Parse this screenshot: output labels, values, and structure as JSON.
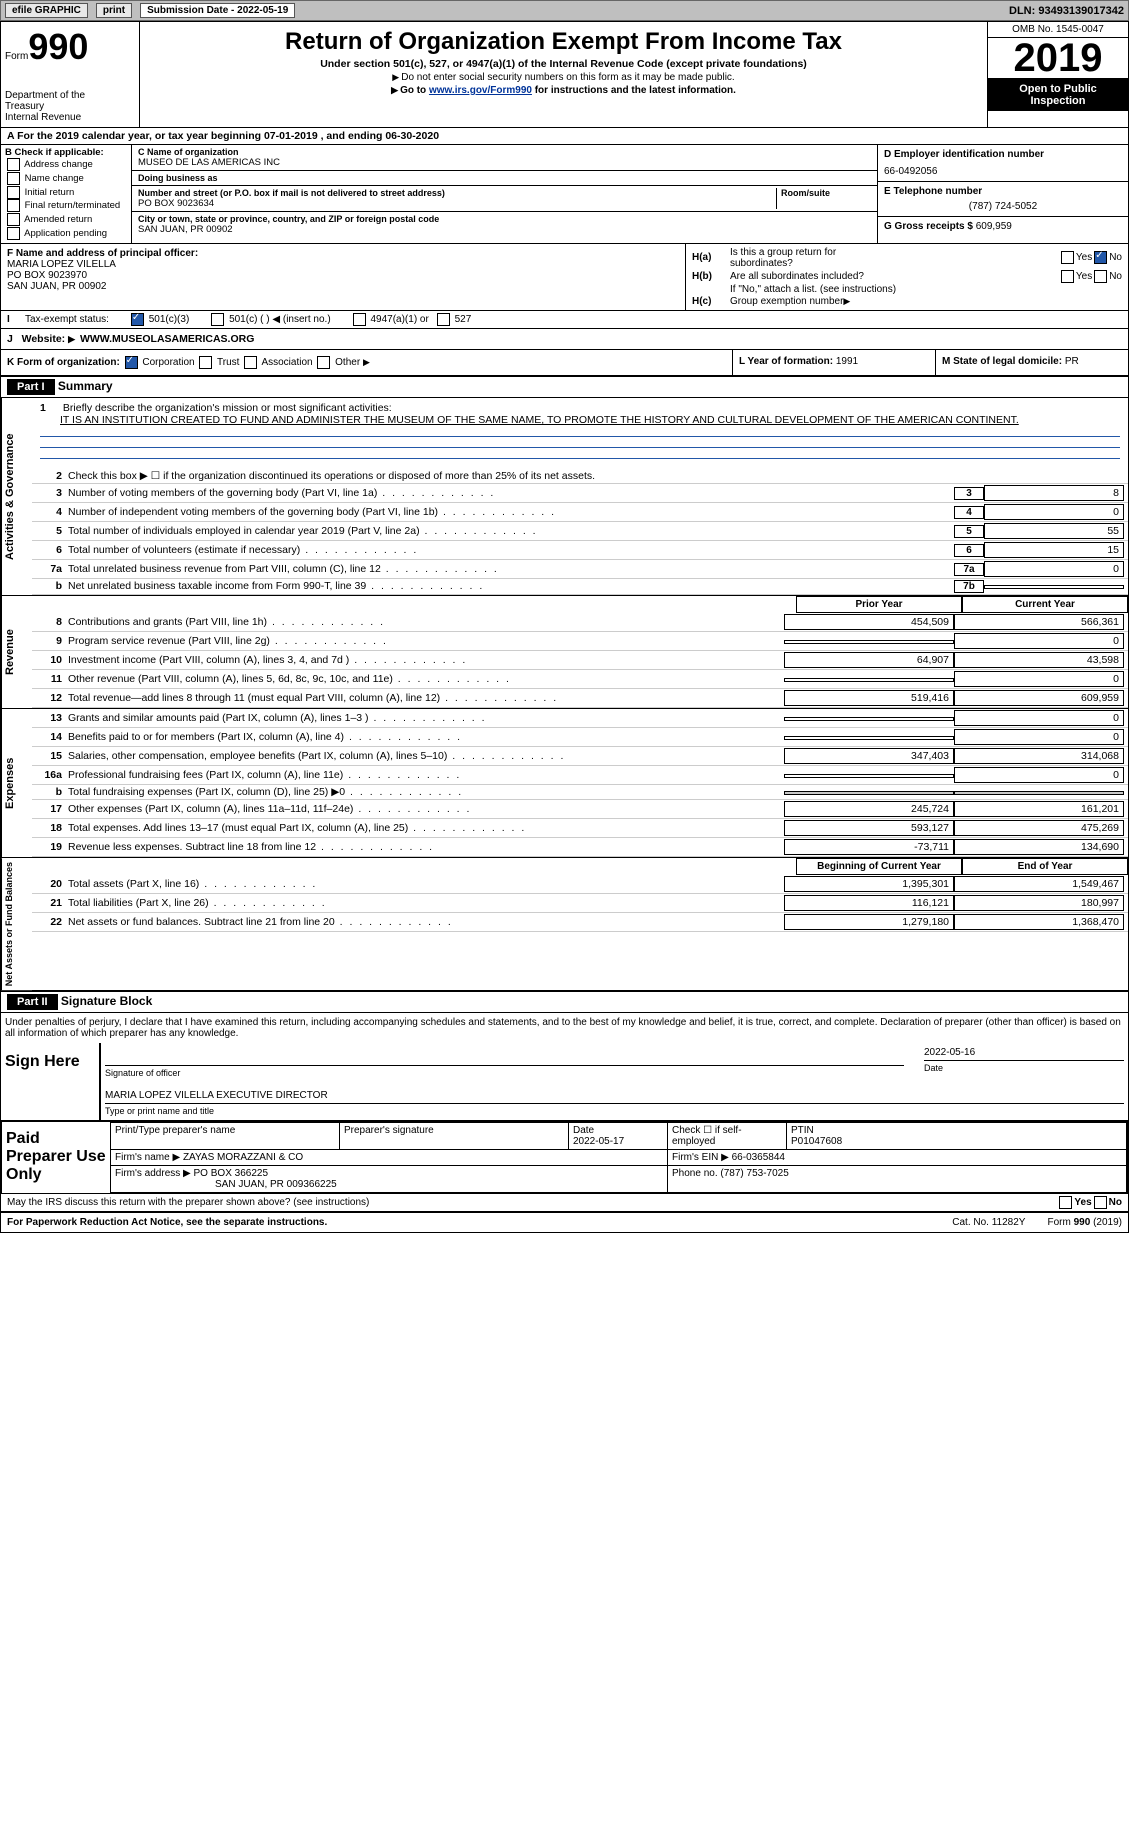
{
  "toolbar": {
    "efile_label": "efile GRAPHIC",
    "print_label": "print",
    "submission_label": "Submission Date - 2022-05-19",
    "dln": "DLN: 93493139017342"
  },
  "header": {
    "form_word": "Form",
    "form_number": "990",
    "dept1": "Department of the",
    "dept2": "Treasury",
    "dept3": "Internal Revenue",
    "title": "Return of Organization Exempt From Income Tax",
    "subtitle": "Under section 501(c), 527, or 4947(a)(1) of the Internal Revenue Code (except private foundations)",
    "note1": "Do not enter social security numbers on this form as it may be made public.",
    "note2_pre": "Go to ",
    "note2_link": "www.irs.gov/Form990",
    "note2_post": " for instructions and the latest information.",
    "omb": "OMB No. 1545-0047",
    "year": "2019",
    "open1": "Open to Public",
    "open2": "Inspection"
  },
  "a_row": "A For the 2019 calendar year, or tax year beginning 07-01-2019    , and ending 06-30-2020",
  "boxB": {
    "header": "B Check if applicable:",
    "opts": [
      "Address change",
      "Name change",
      "Initial return",
      "Final return/terminated",
      "Amended return",
      "Application pending"
    ]
  },
  "boxC": {
    "name_label": "C Name of organization",
    "name": "MUSEO DE LAS AMERICAS INC",
    "dba_label": "Doing business as",
    "dba": "",
    "addr_label": "Number and street (or P.O. box if mail is not delivered to street address)",
    "room_label": "Room/suite",
    "addr": "PO BOX 9023634",
    "city_label": "City or town, state or province, country, and ZIP or foreign postal code",
    "city": "SAN JUAN, PR   00902"
  },
  "boxD": {
    "label": "D Employer identification number",
    "value": "66-0492056"
  },
  "boxE": {
    "label": "E Telephone number",
    "value": "(787) 724-5052"
  },
  "boxG": {
    "label": "G Gross receipts $",
    "value": "609,959"
  },
  "boxF": {
    "label": "F  Name and address of principal officer:",
    "name": "MARIA LOPEZ VILELLA",
    "addr1": "PO BOX 9023970",
    "addr2": "SAN JUAN, PR   00902"
  },
  "boxH": {
    "a_label": "H(a)",
    "a_text": "Is this a group return for",
    "a_text2": "subordinates?",
    "b_label": "H(b)",
    "b_text": "Are all subordinates included?",
    "b_note": "If \"No,\" attach a list. (see instructions)",
    "c_label": "H(c)",
    "c_text": "Group exemption number",
    "yes": "Yes",
    "no": "No"
  },
  "statusI": {
    "label": "Tax-exempt status:",
    "o1": "501(c)(3)",
    "o2": "501(c) (  )",
    "o2_note": "(insert no.)",
    "o3": "4947(a)(1) or",
    "o4": "527"
  },
  "rowJ": {
    "label": "Website:",
    "value": "WWW.MUSEOLASAMERICAS.ORG"
  },
  "rowK": {
    "label": "K Form of organization:",
    "o1": "Corporation",
    "o2": "Trust",
    "o3": "Association",
    "o4": "Other"
  },
  "rowL": {
    "label": "L Year of formation:",
    "value": "1991"
  },
  "rowM": {
    "label": "M State of legal domicile:",
    "value": "PR"
  },
  "part1": {
    "header": "Part I",
    "title": "Summary",
    "line1_label": "1",
    "line1_text": "Briefly describe the organization's mission or most significant activities:",
    "mission": "IT IS AN INSTITUTION CREATED TO FUND AND ADMINISTER THE MUSEUM OF THE SAME NAME, TO PROMOTE THE HISTORY AND CULTURAL DEVELOPMENT OF THE AMERICAN CONTINENT.",
    "line2": "Check this box ▶ ☐  if the organization discontinued its operations or disposed of more than 25% of its net assets.",
    "side_gov": "Activities & Governance",
    "side_rev": "Revenue",
    "side_exp": "Expenses",
    "side_net": "Net Assets or Fund Balances",
    "col_prior": "Prior Year",
    "col_current": "Current Year",
    "col_bocy": "Beginning of Current Year",
    "col_eoy": "End of Year",
    "gov_lines": [
      {
        "n": "3",
        "d": "Number of voting members of the governing body (Part VI, line 1a)",
        "box": "3",
        "v": "8"
      },
      {
        "n": "4",
        "d": "Number of independent voting members of the governing body (Part VI, line 1b)",
        "box": "4",
        "v": "0"
      },
      {
        "n": "5",
        "d": "Total number of individuals employed in calendar year 2019 (Part V, line 2a)",
        "box": "5",
        "v": "55"
      },
      {
        "n": "6",
        "d": "Total number of volunteers (estimate if necessary)",
        "box": "6",
        "v": "15"
      },
      {
        "n": "7a",
        "d": "Total unrelated business revenue from Part VIII, column (C), line 12",
        "box": "7a",
        "v": "0"
      },
      {
        "n": "b",
        "d": "Net unrelated business taxable income from Form 990-T, line 39",
        "box": "7b",
        "v": ""
      }
    ],
    "rev_lines": [
      {
        "n": "8",
        "d": "Contributions and grants (Part VIII, line 1h)",
        "p": "454,509",
        "c": "566,361"
      },
      {
        "n": "9",
        "d": "Program service revenue (Part VIII, line 2g)",
        "p": "",
        "c": "0"
      },
      {
        "n": "10",
        "d": "Investment income (Part VIII, column (A), lines 3, 4, and 7d )",
        "p": "64,907",
        "c": "43,598"
      },
      {
        "n": "11",
        "d": "Other revenue (Part VIII, column (A), lines 5, 6d, 8c, 9c, 10c, and 11e)",
        "p": "",
        "c": "0"
      },
      {
        "n": "12",
        "d": "Total revenue—add lines 8 through 11 (must equal Part VIII, column (A), line 12)",
        "p": "519,416",
        "c": "609,959"
      }
    ],
    "exp_lines": [
      {
        "n": "13",
        "d": "Grants and similar amounts paid (Part IX, column (A), lines 1–3 )",
        "p": "",
        "c": "0"
      },
      {
        "n": "14",
        "d": "Benefits paid to or for members (Part IX, column (A), line 4)",
        "p": "",
        "c": "0"
      },
      {
        "n": "15",
        "d": "Salaries, other compensation, employee benefits (Part IX, column (A), lines 5–10)",
        "p": "347,403",
        "c": "314,068"
      },
      {
        "n": "16a",
        "d": "Professional fundraising fees (Part IX, column (A), line 11e)",
        "p": "",
        "c": "0"
      },
      {
        "n": "b",
        "d": "Total fundraising expenses (Part IX, column (D), line 25) ▶0",
        "p": "SHADE",
        "c": "SHADE"
      },
      {
        "n": "17",
        "d": "Other expenses (Part IX, column (A), lines 11a–11d, 11f–24e)",
        "p": "245,724",
        "c": "161,201"
      },
      {
        "n": "18",
        "d": "Total expenses. Add lines 13–17 (must equal Part IX, column (A), line 25)",
        "p": "593,127",
        "c": "475,269"
      },
      {
        "n": "19",
        "d": "Revenue less expenses. Subtract line 18 from line 12",
        "p": "-73,711",
        "c": "134,690"
      }
    ],
    "net_lines": [
      {
        "n": "20",
        "d": "Total assets (Part X, line 16)",
        "p": "1,395,301",
        "c": "1,549,467"
      },
      {
        "n": "21",
        "d": "Total liabilities (Part X, line 26)",
        "p": "116,121",
        "c": "180,997"
      },
      {
        "n": "22",
        "d": "Net assets or fund balances. Subtract line 21 from line 20",
        "p": "1,279,180",
        "c": "1,368,470"
      }
    ]
  },
  "part2": {
    "header": "Part II",
    "title": "Signature Block",
    "declaration": "Under penalties of perjury, I declare that I have examined this return, including accompanying schedules and statements, and to the best of my knowledge and belief, it is true, correct, and complete. Declaration of preparer (other than officer) is based on all information of which preparer has any knowledge.",
    "sign_here": "Sign Here",
    "sig_officer": "Signature of officer",
    "sig_date": "Date",
    "sig_date_val": "2022-05-16",
    "officer_name": "MARIA LOPEZ VILELLA  EXECUTIVE DIRECTOR",
    "type_name": "Type or print name and title",
    "paid_label": "Paid Preparer Use Only",
    "prep_name_label": "Print/Type preparer's name",
    "prep_sig_label": "Preparer's signature",
    "prep_date_label": "Date",
    "prep_date": "2022-05-17",
    "self_emp": "Check ☐ if self-employed",
    "ptin_label": "PTIN",
    "ptin": "P01047608",
    "firm_name_label": "Firm's name    ▶",
    "firm_name": "ZAYAS MORAZZANI & CO",
    "firm_ein_label": "Firm's EIN ▶",
    "firm_ein": "66-0365844",
    "firm_addr_label": "Firm's address ▶",
    "firm_addr1": "PO BOX 366225",
    "firm_addr2": "SAN JUAN, PR   009366225",
    "phone_label": "Phone no.",
    "phone": "(787) 753-7025",
    "discuss": "May the IRS discuss this return with the preparer shown above? (see instructions)",
    "yes": "Yes",
    "no": "No"
  },
  "footer": {
    "pra": "For Paperwork Reduction Act Notice, see the separate instructions.",
    "cat": "Cat. No. 11282Y",
    "form": "Form 990 (2019)"
  }
}
